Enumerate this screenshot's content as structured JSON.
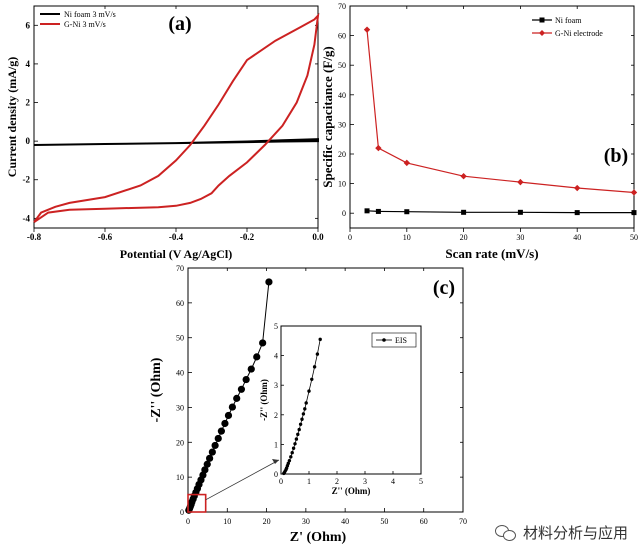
{
  "watermark": {
    "text": "材料分析与应用",
    "icon": "wechat-icon"
  },
  "chart_data": [
    {
      "panel": "(a)",
      "type": "line",
      "xlabel": "Potential (V Ag/AgCl)",
      "ylabel": "Current density (mA/g)",
      "xlim": [
        -0.8,
        0.0
      ],
      "ylim": [
        -4.5,
        7.0
      ],
      "xticks": [
        "-0.8",
        "-0.6",
        "-0.4",
        "-0.2",
        "0.0"
      ],
      "xtick_values": [
        -0.8,
        -0.6,
        -0.4,
        -0.2,
        0.0
      ],
      "yticks": [
        "-4",
        "-2",
        "0",
        "2",
        "4",
        "6"
      ],
      "ytick_values": [
        -4,
        -2,
        0,
        2,
        4,
        6
      ],
      "legend_position": "top-left",
      "series": [
        {
          "name": "Ni foam 3 mV/s",
          "color": "#000000",
          "x": [
            -0.8,
            -0.6,
            -0.4,
            -0.2,
            -0.1,
            0.0,
            0.0,
            -0.1,
            -0.2,
            -0.4,
            -0.6,
            -0.8
          ],
          "y": [
            -0.2,
            -0.15,
            -0.1,
            -0.02,
            0.05,
            0.1,
            0.0,
            -0.02,
            -0.05,
            -0.1,
            -0.15,
            -0.2
          ]
        },
        {
          "name": "G-Ni 3 mV/s",
          "color": "#cc2222",
          "x": [
            -0.8,
            -0.78,
            -0.74,
            -0.7,
            -0.6,
            -0.5,
            -0.45,
            -0.4,
            -0.36,
            -0.32,
            -0.28,
            -0.24,
            -0.2,
            -0.12,
            -0.05,
            -0.01,
            0.0,
            -0.01,
            -0.03,
            -0.06,
            -0.1,
            -0.15,
            -0.2,
            -0.25,
            -0.28,
            -0.3,
            -0.33,
            -0.36,
            -0.4,
            -0.45,
            -0.5,
            -0.6,
            -0.7,
            -0.76,
            -0.8
          ],
          "y": [
            -4.2,
            -3.7,
            -3.4,
            -3.2,
            -2.9,
            -2.3,
            -1.8,
            -1.0,
            -0.2,
            0.8,
            1.9,
            3.1,
            4.2,
            5.2,
            5.9,
            6.3,
            6.5,
            5.0,
            3.4,
            2.0,
            0.8,
            -0.2,
            -1.1,
            -1.8,
            -2.3,
            -2.7,
            -3.0,
            -3.2,
            -3.35,
            -3.42,
            -3.45,
            -3.5,
            -3.55,
            -3.7,
            -4.2
          ]
        }
      ]
    },
    {
      "panel": "(b)",
      "type": "line",
      "xlabel": "Scan rate (mV/s)",
      "ylabel": "Specific capacitance (F/g)",
      "xlim": [
        0,
        50
      ],
      "ylim": [
        -5,
        70
      ],
      "xticks": [
        "0",
        "10",
        "20",
        "30",
        "40",
        "50"
      ],
      "xtick_values": [
        0,
        10,
        20,
        30,
        40,
        50
      ],
      "yticks": [
        "0",
        "10",
        "20",
        "30",
        "40",
        "50",
        "60",
        "70"
      ],
      "ytick_values": [
        0,
        10,
        20,
        30,
        40,
        50,
        60,
        70
      ],
      "legend_position": "top-right",
      "series": [
        {
          "name": "Ni foam",
          "color": "#000000",
          "marker": "square",
          "x": [
            3,
            5,
            10,
            20,
            30,
            40,
            50
          ],
          "y": [
            0.8,
            0.6,
            0.5,
            0.3,
            0.3,
            0.2,
            0.2
          ]
        },
        {
          "name": "G-Ni electrode",
          "color": "#cc2222",
          "marker": "diamond",
          "x": [
            3,
            5,
            10,
            20,
            30,
            40,
            50
          ],
          "y": [
            62,
            22,
            17,
            12.5,
            10.5,
            8.5,
            7
          ]
        }
      ]
    },
    {
      "panel": "(c)",
      "type": "scatter",
      "xlabel": "Z' (Ohm)",
      "ylabel": "-Z'' (Ohm)",
      "xlim": [
        0,
        70
      ],
      "ylim": [
        0,
        70
      ],
      "xticks": [
        "0",
        "10",
        "20",
        "30",
        "40",
        "50",
        "60",
        "70"
      ],
      "xtick_values": [
        0,
        10,
        20,
        30,
        40,
        50,
        60,
        70
      ],
      "yticks": [
        "0",
        "10",
        "20",
        "30",
        "40",
        "50",
        "60",
        "70"
      ],
      "ytick_values": [
        0,
        10,
        20,
        30,
        40,
        50,
        60,
        70
      ],
      "series": [
        {
          "name": "EIS",
          "color": "#000000",
          "x": [
            0.2,
            0.4,
            0.6,
            0.8,
            1.0,
            1.3,
            1.6,
            2.0,
            2.4,
            2.8,
            3.3,
            3.8,
            4.3,
            4.9,
            5.5,
            6.2,
            6.9,
            7.7,
            8.5,
            9.4,
            10.3,
            11.3,
            12.4,
            13.6,
            14.8,
            16.1,
            17.5,
            19.0,
            20.6
          ],
          "y": [
            0.5,
            1.0,
            1.6,
            2.2,
            2.9,
            3.7,
            4.6,
            5.6,
            6.7,
            7.9,
            9.2,
            10.6,
            12.1,
            13.7,
            15.4,
            17.2,
            19.1,
            21.1,
            23.2,
            25.4,
            27.7,
            30.1,
            32.6,
            35.2,
            38.0,
            41.0,
            44.5,
            48.5,
            66.0
          ]
        }
      ],
      "inset": {
        "xlabel": "Z'' (Ohm)",
        "ylabel": "-Z'' (Ohm)",
        "xlim": [
          0,
          5
        ],
        "ylim": [
          0,
          5
        ],
        "xticks": [
          "0",
          "1",
          "2",
          "3",
          "4",
          "5"
        ],
        "xtick_values": [
          0,
          1,
          2,
          3,
          4,
          5
        ],
        "yticks": [
          "0",
          "1",
          "2",
          "3",
          "4",
          "5"
        ],
        "ytick_values": [
          0,
          1,
          2,
          3,
          4,
          5
        ],
        "legend": "EIS",
        "legend_position": "top-right",
        "x": [
          0.1,
          0.12,
          0.15,
          0.18,
          0.2,
          0.23,
          0.26,
          0.3,
          0.35,
          0.4,
          0.45,
          0.5,
          0.55,
          0.6,
          0.65,
          0.7,
          0.75,
          0.8,
          0.85,
          0.9,
          1.0,
          1.1,
          1.2,
          1.3,
          1.4
        ],
        "y": [
          0.02,
          0.05,
          0.1,
          0.15,
          0.2,
          0.28,
          0.36,
          0.45,
          0.58,
          0.72,
          0.87,
          1.02,
          1.18,
          1.34,
          1.5,
          1.68,
          1.85,
          2.03,
          2.2,
          2.4,
          2.8,
          3.2,
          3.62,
          4.05,
          4.55
        ]
      }
    }
  ]
}
